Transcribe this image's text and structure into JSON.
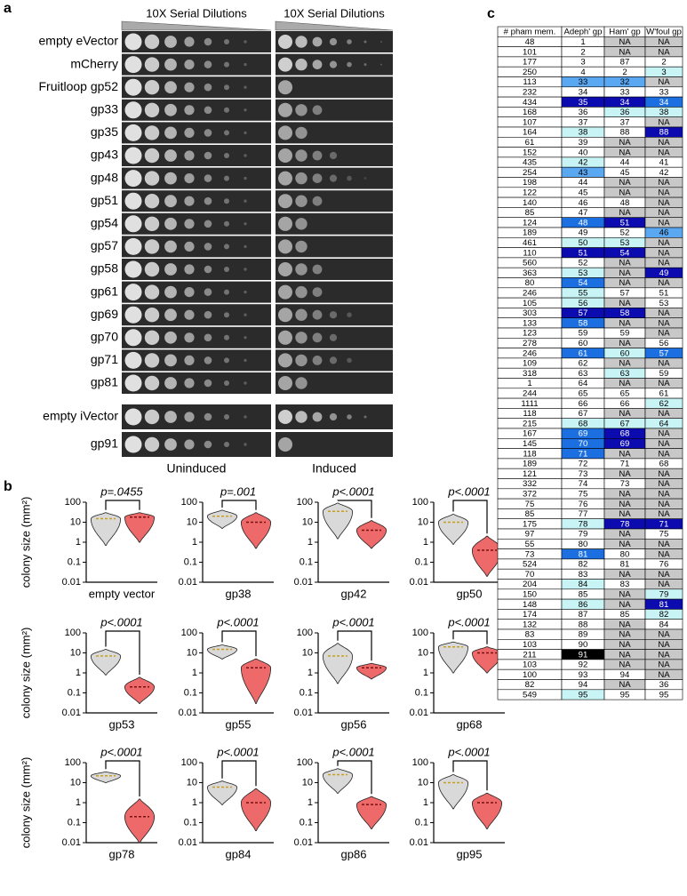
{
  "panel_labels": [
    "a",
    "b",
    "c"
  ],
  "panel_a": {
    "header_left": "10X Serial Dilutions",
    "header_right": "10X Serial Dilutions",
    "rows": [
      "empty eVector",
      "mCherry",
      "Fruitloop gp52",
      "gp33",
      "gp35",
      "gp43",
      "gp48",
      "gp51",
      "gp54",
      "gp57",
      "gp58",
      "gp61",
      "gp69",
      "gp70",
      "gp71",
      "gp81",
      "empty iVector",
      "gp91"
    ],
    "footer_left": "Uninduced",
    "footer_right": "Induced"
  },
  "chart_data": [
    {
      "type": "violin",
      "title": "p=.0455",
      "x_label": "empty vector",
      "y_label": "colony size (mm²)",
      "log_scale": true,
      "ylim": [
        0.01,
        100
      ],
      "yticks": [
        0.01,
        0.1,
        1,
        10,
        100
      ],
      "series": [
        {
          "color": "#d9d9d9",
          "values": [
            0.7,
            15,
            30
          ]
        },
        {
          "color": "#ee6a6a",
          "values": [
            1,
            18,
            30
          ]
        }
      ]
    },
    {
      "type": "violin",
      "title": "p=.001",
      "x_label": "gp38",
      "log_scale": true,
      "ylim": [
        0.01,
        100
      ],
      "yticks": [
        0.01,
        0.1,
        1,
        10,
        100
      ],
      "series": [
        {
          "color": "#d9d9d9",
          "values": [
            5,
            20,
            40
          ]
        },
        {
          "color": "#ee6a6a",
          "values": [
            0.5,
            10,
            30
          ]
        }
      ]
    },
    {
      "type": "violin",
      "title": "p<.0001",
      "x_label": "gp42",
      "log_scale": true,
      "ylim": [
        0.01,
        100
      ],
      "yticks": [
        0.01,
        0.1,
        1,
        10,
        100
      ],
      "series": [
        {
          "color": "#d9d9d9",
          "values": [
            1.5,
            35,
            90
          ]
        },
        {
          "color": "#ee6a6a",
          "values": [
            0.5,
            4,
            12
          ]
        }
      ]
    },
    {
      "type": "violin",
      "title": "p<.0001",
      "x_label": "gp50",
      "log_scale": true,
      "ylim": [
        0.01,
        100
      ],
      "yticks": [
        0.01,
        0.1,
        1,
        10,
        100
      ],
      "series": [
        {
          "color": "#d9d9d9",
          "values": [
            0.8,
            10,
            25
          ]
        },
        {
          "color": "#ee6a6a",
          "values": [
            0.02,
            0.4,
            2
          ]
        }
      ]
    },
    {
      "type": "violin",
      "title": "p<.0001",
      "x_label": "gp53",
      "y_label": "colony size (mm²)",
      "log_scale": true,
      "ylim": [
        0.01,
        100
      ],
      "yticks": [
        0.01,
        0.1,
        1,
        10,
        100
      ],
      "series": [
        {
          "color": "#d9d9d9",
          "values": [
            0.8,
            7,
            15
          ]
        },
        {
          "color": "#ee6a6a",
          "values": [
            0.03,
            0.2,
            0.6
          ]
        }
      ]
    },
    {
      "type": "violin",
      "title": "p<.0001",
      "x_label": "gp55",
      "log_scale": true,
      "ylim": [
        0.01,
        100
      ],
      "yticks": [
        0.01,
        0.1,
        1,
        10,
        100
      ],
      "series": [
        {
          "color": "#d9d9d9",
          "values": [
            5,
            15,
            25
          ]
        },
        {
          "color": "#ee6a6a",
          "values": [
            0.03,
            1.8,
            5
          ]
        }
      ]
    },
    {
      "type": "violin",
      "title": "p<.0001",
      "x_label": "gp56",
      "log_scale": true,
      "ylim": [
        0.01,
        100
      ],
      "yticks": [
        0.01,
        0.1,
        1,
        10,
        100
      ],
      "series": [
        {
          "color": "#d9d9d9",
          "values": [
            0.3,
            7,
            30
          ]
        },
        {
          "color": "#ee6a6a",
          "values": [
            0.5,
            1.8,
            3
          ]
        }
      ]
    },
    {
      "type": "violin",
      "title": "p<.0001",
      "x_label": "gp68",
      "log_scale": true,
      "ylim": [
        0.01,
        100
      ],
      "yticks": [
        0.01,
        0.1,
        1,
        10,
        100
      ],
      "series": [
        {
          "color": "#d9d9d9",
          "values": [
            1,
            20,
            35
          ]
        },
        {
          "color": "#ee6a6a",
          "values": [
            1,
            10,
            20
          ]
        }
      ]
    },
    {
      "type": "violin",
      "title": "p<.0001",
      "x_label": "gp78",
      "y_label": "colony size (mm²)",
      "log_scale": true,
      "ylim": [
        0.01,
        100
      ],
      "yticks": [
        0.01,
        0.1,
        1,
        10,
        100
      ],
      "series": [
        {
          "color": "#d9d9d9",
          "values": [
            10,
            22,
            35
          ]
        },
        {
          "color": "#ee6a6a",
          "values": [
            0.01,
            0.2,
            1.5
          ]
        }
      ]
    },
    {
      "type": "violin",
      "title": "p<.0001",
      "x_label": "gp84",
      "log_scale": true,
      "ylim": [
        0.01,
        100
      ],
      "yticks": [
        0.01,
        0.1,
        1,
        10,
        100
      ],
      "series": [
        {
          "color": "#d9d9d9",
          "values": [
            0.8,
            6,
            12
          ]
        },
        {
          "color": "#ee6a6a",
          "values": [
            0.04,
            1,
            5
          ]
        }
      ]
    },
    {
      "type": "violin",
      "title": "p<.0001",
      "x_label": "gp86",
      "log_scale": true,
      "ylim": [
        0.01,
        100
      ],
      "yticks": [
        0.01,
        0.1,
        1,
        10,
        100
      ],
      "series": [
        {
          "color": "#d9d9d9",
          "values": [
            3,
            25,
            50
          ]
        },
        {
          "color": "#ee6a6a",
          "values": [
            0.05,
            0.8,
            2
          ]
        }
      ]
    },
    {
      "type": "violin",
      "title": "p<.0001",
      "x_label": "gp95",
      "log_scale": true,
      "ylim": [
        0.01,
        100
      ],
      "yticks": [
        0.01,
        0.1,
        1,
        10,
        100
      ],
      "series": [
        {
          "color": "#d9d9d9",
          "values": [
            0.5,
            10,
            25
          ]
        },
        {
          "color": "#ee6a6a",
          "values": [
            0.05,
            1,
            3
          ]
        }
      ]
    }
  ],
  "table": {
    "columns": [
      "# pham mem.",
      "Adeph' gp",
      "Ham' gp",
      "W'foul gp"
    ],
    "rows": [
      [
        "48",
        "1",
        "NA",
        "NA"
      ],
      [
        "101",
        "2",
        "NA",
        "NA"
      ],
      [
        "177",
        "3",
        "87",
        "2"
      ],
      [
        "250",
        "4",
        "2",
        "3"
      ],
      [
        "113",
        "33",
        "32",
        "NA"
      ],
      [
        "232",
        "34",
        "33",
        "33"
      ],
      [
        "434",
        "35",
        "34",
        "34"
      ],
      [
        "168",
        "36",
        "36",
        "38"
      ],
      [
        "107",
        "37",
        "37",
        "NA"
      ],
      [
        "164",
        "38",
        "88",
        "88"
      ],
      [
        "61",
        "39",
        "NA",
        "NA"
      ],
      [
        "152",
        "40",
        "NA",
        "NA"
      ],
      [
        "435",
        "42",
        "44",
        "41"
      ],
      [
        "254",
        "43",
        "45",
        "42"
      ],
      [
        "198",
        "44",
        "NA",
        "NA"
      ],
      [
        "122",
        "45",
        "NA",
        "NA"
      ],
      [
        "140",
        "46",
        "48",
        "NA"
      ],
      [
        "85",
        "47",
        "NA",
        "NA"
      ],
      [
        "124",
        "48",
        "51",
        "NA"
      ],
      [
        "189",
        "49",
        "52",
        "46"
      ],
      [
        "461",
        "50",
        "53",
        "NA"
      ],
      [
        "110",
        "51",
        "54",
        "NA"
      ],
      [
        "560",
        "52",
        "NA",
        "NA"
      ],
      [
        "363",
        "53",
        "NA",
        "49"
      ],
      [
        "80",
        "54",
        "NA",
        "NA"
      ],
      [
        "246",
        "55",
        "57",
        "51"
      ],
      [
        "105",
        "56",
        "NA",
        "53"
      ],
      [
        "303",
        "57",
        "58",
        "NA"
      ],
      [
        "133",
        "58",
        "NA",
        "NA"
      ],
      [
        "123",
        "59",
        "59",
        "NA"
      ],
      [
        "278",
        "60",
        "NA",
        "56"
      ],
      [
        "246",
        "61",
        "60",
        "57"
      ],
      [
        "109",
        "62",
        "NA",
        "NA"
      ],
      [
        "318",
        "63",
        "63",
        "59"
      ],
      [
        "1",
        "64",
        "NA",
        "NA"
      ],
      [
        "244",
        "65",
        "65",
        "61"
      ],
      [
        "1111",
        "66",
        "66",
        "62"
      ],
      [
        "118",
        "67",
        "NA",
        "NA"
      ],
      [
        "215",
        "68",
        "67",
        "64"
      ],
      [
        "167",
        "69",
        "68",
        "NA"
      ],
      [
        "145",
        "70",
        "69",
        "NA"
      ],
      [
        "118",
        "71",
        "NA",
        "NA"
      ],
      [
        "189",
        "72",
        "71",
        "68"
      ],
      [
        "121",
        "73",
        "NA",
        "NA"
      ],
      [
        "332",
        "74",
        "73",
        "NA"
      ],
      [
        "372",
        "75",
        "NA",
        "NA"
      ],
      [
        "75",
        "76",
        "NA",
        "NA"
      ],
      [
        "85",
        "77",
        "NA",
        "NA"
      ],
      [
        "175",
        "78",
        "78",
        "71"
      ],
      [
        "97",
        "79",
        "NA",
        "75"
      ],
      [
        "55",
        "80",
        "NA",
        "NA"
      ],
      [
        "73",
        "81",
        "80",
        "NA"
      ],
      [
        "524",
        "82",
        "81",
        "76"
      ],
      [
        "70",
        "83",
        "NA",
        "NA"
      ],
      [
        "204",
        "84",
        "83",
        "NA"
      ],
      [
        "150",
        "85",
        "NA",
        "79"
      ],
      [
        "148",
        "86",
        "NA",
        "81"
      ],
      [
        "174",
        "87",
        "85",
        "82"
      ],
      [
        "132",
        "88",
        "NA",
        "84"
      ],
      [
        "83",
        "89",
        "NA",
        "NA"
      ],
      [
        "103",
        "90",
        "NA",
        "NA"
      ],
      [
        "211",
        "91",
        "NA",
        "NA"
      ],
      [
        "103",
        "92",
        "NA",
        "NA"
      ],
      [
        "100",
        "93",
        "94",
        "NA"
      ],
      [
        "82",
        "94",
        "NA",
        "36"
      ],
      [
        "549",
        "95",
        "95",
        "95"
      ]
    ],
    "fills": [
      [
        "#ffffff",
        "#c8c8c8",
        "#c8c8c8"
      ],
      [
        "#ffffff",
        "#c8c8c8",
        "#c8c8c8"
      ],
      [
        "#ffffff",
        "#ffffff",
        "#ffffff"
      ],
      [
        "#ffffff",
        "#ffffff",
        "#c8f4f6"
      ],
      [
        "#5aa7f2",
        "#5aa7f2",
        "#c8c8c8"
      ],
      [
        "#ffffff",
        "#ffffff",
        "#ffffff"
      ],
      [
        "#0b0bb0",
        "#0b0bb0",
        "#1c6fe0"
      ],
      [
        "#ffffff",
        "#c8f4f6",
        "#c8f4f6"
      ],
      [
        "#ffffff",
        "#ffffff",
        "#c8c8c8"
      ],
      [
        "#c8f4f6",
        "#ffffff",
        "#0b0bb0"
      ],
      [
        "#ffffff",
        "#c8c8c8",
        "#c8c8c8"
      ],
      [
        "#ffffff",
        "#c8c8c8",
        "#c8c8c8"
      ],
      [
        "#c8f4f6",
        "#ffffff",
        "#ffffff"
      ],
      [
        "#5aa7f2",
        "#ffffff",
        "#ffffff"
      ],
      [
        "#ffffff",
        "#c8c8c8",
        "#c8c8c8"
      ],
      [
        "#ffffff",
        "#c8c8c8",
        "#c8c8c8"
      ],
      [
        "#ffffff",
        "#ffffff",
        "#c8c8c8"
      ],
      [
        "#ffffff",
        "#c8c8c8",
        "#c8c8c8"
      ],
      [
        "#1c6fe0",
        "#0b0bb0",
        "#c8c8c8"
      ],
      [
        "#ffffff",
        "#ffffff",
        "#5aa7f2"
      ],
      [
        "#c8f4f6",
        "#c8f4f6",
        "#c8c8c8"
      ],
      [
        "#0b0bb0",
        "#0b0bb0",
        "#c8c8c8"
      ],
      [
        "#ffffff",
        "#c8c8c8",
        "#c8c8c8"
      ],
      [
        "#c8f4f6",
        "#c8c8c8",
        "#0b0bb0"
      ],
      [
        "#1c6fe0",
        "#c8c8c8",
        "#c8c8c8"
      ],
      [
        "#c8f4f6",
        "#ffffff",
        "#ffffff"
      ],
      [
        "#c8f4f6",
        "#c8c8c8",
        "#ffffff"
      ],
      [
        "#0b0bb0",
        "#0b0bb0",
        "#c8c8c8"
      ],
      [
        "#1c6fe0",
        "#c8c8c8",
        "#c8c8c8"
      ],
      [
        "#ffffff",
        "#ffffff",
        "#c8c8c8"
      ],
      [
        "#ffffff",
        "#c8c8c8",
        "#ffffff"
      ],
      [
        "#1c6fe0",
        "#c8f4f6",
        "#1c6fe0"
      ],
      [
        "#ffffff",
        "#c8c8c8",
        "#c8c8c8"
      ],
      [
        "#ffffff",
        "#c8f4f6",
        "#ffffff"
      ],
      [
        "#ffffff",
        "#c8c8c8",
        "#c8c8c8"
      ],
      [
        "#ffffff",
        "#ffffff",
        "#ffffff"
      ],
      [
        "#ffffff",
        "#ffffff",
        "#c8f4f6"
      ],
      [
        "#ffffff",
        "#c8c8c8",
        "#c8c8c8"
      ],
      [
        "#c8f4f6",
        "#c8f4f6",
        "#c8f4f6"
      ],
      [
        "#1c6fe0",
        "#0b0bb0",
        "#c8c8c8"
      ],
      [
        "#1c6fe0",
        "#0b0bb0",
        "#c8c8c8"
      ],
      [
        "#1c6fe0",
        "#c8c8c8",
        "#c8c8c8"
      ],
      [
        "#ffffff",
        "#ffffff",
        "#ffffff"
      ],
      [
        "#ffffff",
        "#c8c8c8",
        "#c8c8c8"
      ],
      [
        "#ffffff",
        "#ffffff",
        "#c8c8c8"
      ],
      [
        "#ffffff",
        "#c8c8c8",
        "#c8c8c8"
      ],
      [
        "#ffffff",
        "#c8c8c8",
        "#c8c8c8"
      ],
      [
        "#ffffff",
        "#c8c8c8",
        "#c8c8c8"
      ],
      [
        "#c8f4f6",
        "#0b0bb0",
        "#0b0bb0"
      ],
      [
        "#ffffff",
        "#c8c8c8",
        "#ffffff"
      ],
      [
        "#ffffff",
        "#c8c8c8",
        "#c8c8c8"
      ],
      [
        "#1c6fe0",
        "#ffffff",
        "#c8c8c8"
      ],
      [
        "#ffffff",
        "#ffffff",
        "#ffffff"
      ],
      [
        "#ffffff",
        "#c8c8c8",
        "#c8c8c8"
      ],
      [
        "#c8f4f6",
        "#ffffff",
        "#c8c8c8"
      ],
      [
        "#ffffff",
        "#c8c8c8",
        "#c8f4f6"
      ],
      [
        "#c8f4f6",
        "#c8c8c8",
        "#0b0bb0"
      ],
      [
        "#ffffff",
        "#ffffff",
        "#c8f4f6"
      ],
      [
        "#ffffff",
        "#c8c8c8",
        "#ffffff"
      ],
      [
        "#ffffff",
        "#c8c8c8",
        "#c8c8c8"
      ],
      [
        "#ffffff",
        "#c8c8c8",
        "#c8c8c8"
      ],
      [
        "#000000",
        "#c8c8c8",
        "#c8c8c8"
      ],
      [
        "#ffffff",
        "#c8c8c8",
        "#c8c8c8"
      ],
      [
        "#ffffff",
        "#ffffff",
        "#c8c8c8"
      ],
      [
        "#ffffff",
        "#c8c8c8",
        "#ffffff"
      ],
      [
        "#c8f4f6",
        "#ffffff",
        "#ffffff"
      ]
    ]
  }
}
